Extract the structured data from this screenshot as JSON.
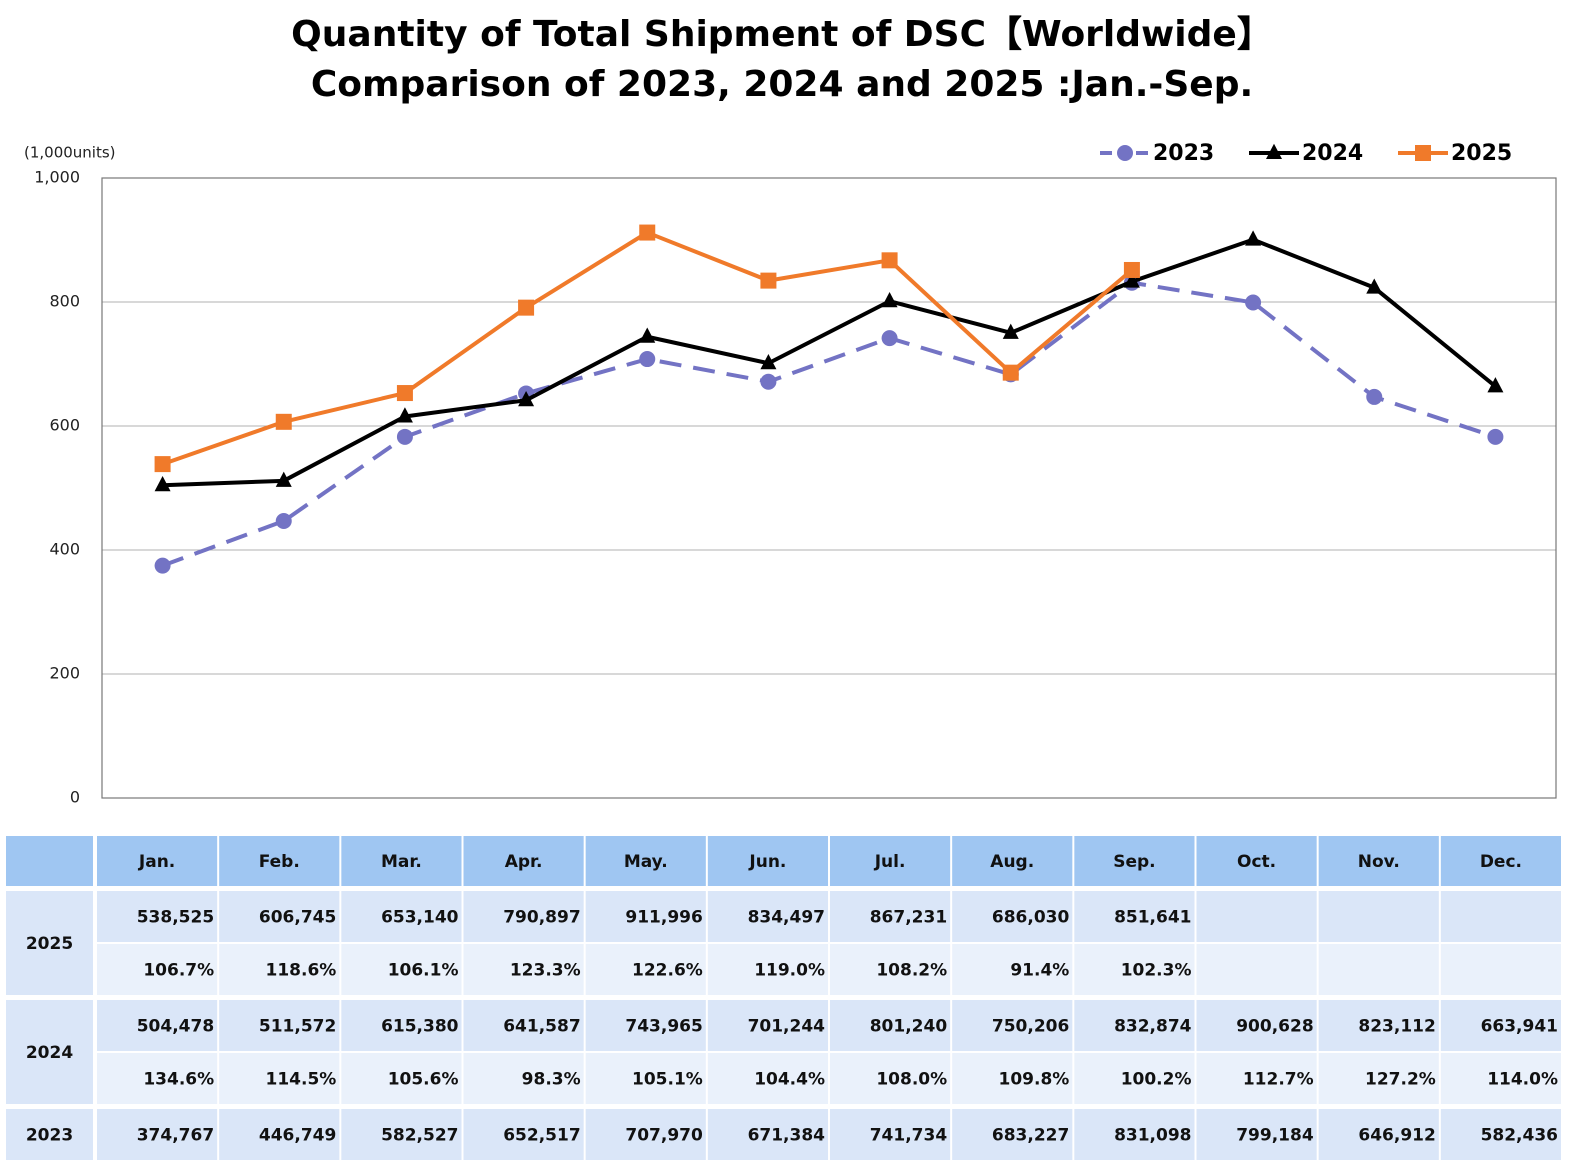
{
  "chart_data": {
    "type": "line",
    "title": "Quantity of Total Shipment of DSC【Worldwide】",
    "subtitle": "Comparison of 2023, 2024 and 2025 :Jan.-Sep.",
    "y_axis_label": "(1,000units)",
    "categories": [
      "Jan.",
      "Feb.",
      "Mar.",
      "Apr.",
      "May.",
      "Jun.",
      "Jul.",
      "Aug.",
      "Sep.",
      "Oct.",
      "Nov.",
      "Dec."
    ],
    "ylim": [
      0,
      1000
    ],
    "yticks": [
      0,
      200,
      400,
      600,
      800,
      {
        "value": 1000,
        "label": "1,000"
      }
    ],
    "grid": true,
    "legend": "top-right",
    "series": [
      {
        "name": "2023",
        "color": "#7373c4",
        "marker": "circle",
        "dashed": true,
        "values": [
          374.767,
          446.749,
          582.527,
          652.517,
          707.97,
          671.384,
          741.734,
          683.227,
          831.098,
          799.184,
          646.912,
          582.436
        ],
        "value_labels": [
          "374,767",
          "446,749",
          "582,527",
          "652,517",
          "707,970",
          "671,384",
          "741,734",
          "683,227",
          "831,098",
          "799,184",
          "646,912",
          "582,436"
        ]
      },
      {
        "name": "2024",
        "color": "#000000",
        "marker": "triangle",
        "dashed": false,
        "values": [
          504.478,
          511.572,
          615.38,
          641.587,
          743.965,
          701.244,
          801.24,
          750.206,
          832.874,
          900.628,
          823.112,
          663.941
        ],
        "value_labels": [
          "504,478",
          "511,572",
          "615,380",
          "641,587",
          "743,965",
          "701,244",
          "801,240",
          "750,206",
          "832,874",
          "900,628",
          "823,112",
          "663,941"
        ],
        "ratio_labels": [
          "134.6%",
          "114.5%",
          "105.6%",
          "98.3%",
          "105.1%",
          "104.4%",
          "108.0%",
          "109.8%",
          "100.2%",
          "112.7%",
          "127.2%",
          "114.0%"
        ]
      },
      {
        "name": "2025",
        "color": "#f07a2a",
        "marker": "square",
        "dashed": false,
        "values": [
          538.525,
          606.745,
          653.14,
          790.897,
          911.996,
          834.497,
          867.231,
          686.03,
          851.641,
          null,
          null,
          null
        ],
        "value_labels": [
          "538,525",
          "606,745",
          "653,140",
          "790,897",
          "911,996",
          "834,497",
          "867,231",
          "686,030",
          "851,641",
          null,
          null,
          null
        ],
        "ratio_labels": [
          "106.7%",
          "118.6%",
          "106.1%",
          "123.3%",
          "122.6%",
          "119.0%",
          "108.2%",
          "91.4%",
          "102.3%",
          null,
          null,
          null
        ]
      }
    ]
  }
}
